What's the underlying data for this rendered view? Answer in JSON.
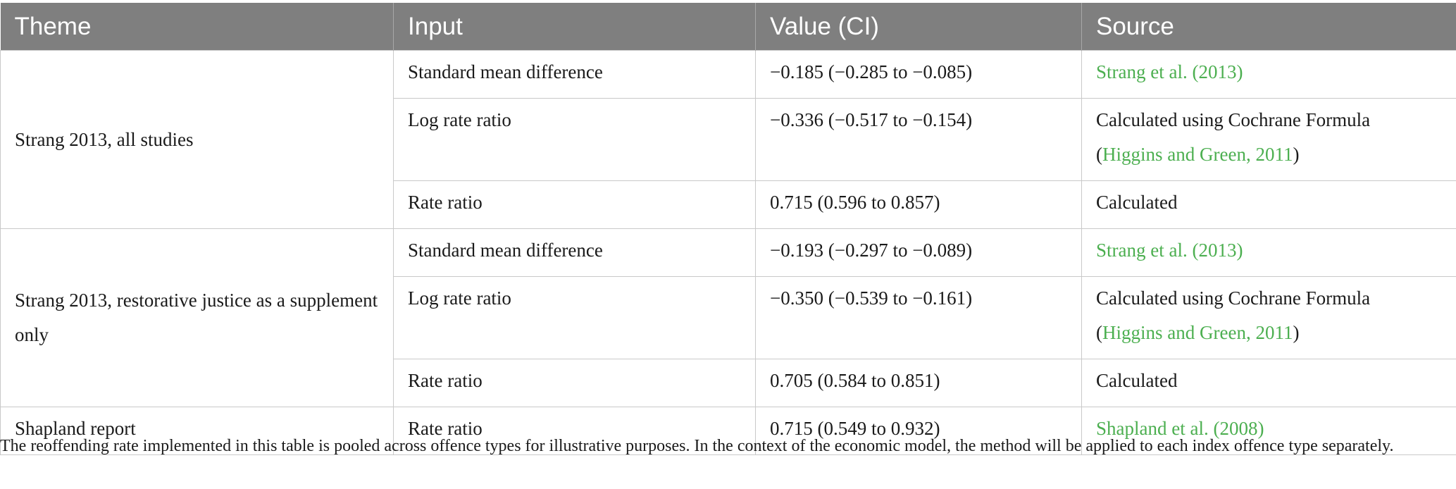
{
  "table": {
    "headers": [
      "Theme",
      "Input",
      "Value (CI)",
      "Source"
    ],
    "groups": [
      {
        "theme": "Strang 2013, all studies",
        "rows": [
          {
            "input": "Standard mean difference",
            "value": "−0.185 (−0.285 to −0.085)",
            "source_link": "Strang et al. (2013)"
          },
          {
            "input": "Log rate ratio",
            "value": "−0.336 (−0.517 to −0.154)",
            "source_line1": "Calculated using Cochrane Formula",
            "source_open": "(",
            "source_link": "Higgins and Green, 2011",
            "source_close": ")"
          },
          {
            "input": "Rate ratio",
            "value": "0.715 (0.596 to 0.857)",
            "source": "Calculated"
          }
        ]
      },
      {
        "theme": "Strang 2013, restorative justice as a supplement only",
        "rows": [
          {
            "input": "Standard mean difference",
            "value": "−0.193 (−0.297 to −0.089)",
            "source_link": "Strang et al. (2013)"
          },
          {
            "input": "Log rate ratio",
            "value": "−0.350 (−0.539 to −0.161)",
            "source_line1": "Calculated using Cochrane Formula",
            "source_open": "(",
            "source_link": "Higgins and Green, 2011",
            "source_close": ")"
          },
          {
            "input": "Rate ratio",
            "value": "0.705 (0.584 to 0.851)",
            "source": "Calculated"
          }
        ]
      },
      {
        "theme": "Shapland report",
        "rows": [
          {
            "input": "Rate ratio",
            "value": "0.715 (0.549 to 0.932)",
            "source_link": "Shapland et al. (2008)"
          }
        ]
      }
    ],
    "footnote": "The reoffending rate implemented in this table is pooled across offence types for illustrative purposes. In the context of the economic model, the method will be applied to each index offence type separately."
  },
  "colors": {
    "header_bg": "#7f7f7f",
    "link": "#4caf50"
  }
}
